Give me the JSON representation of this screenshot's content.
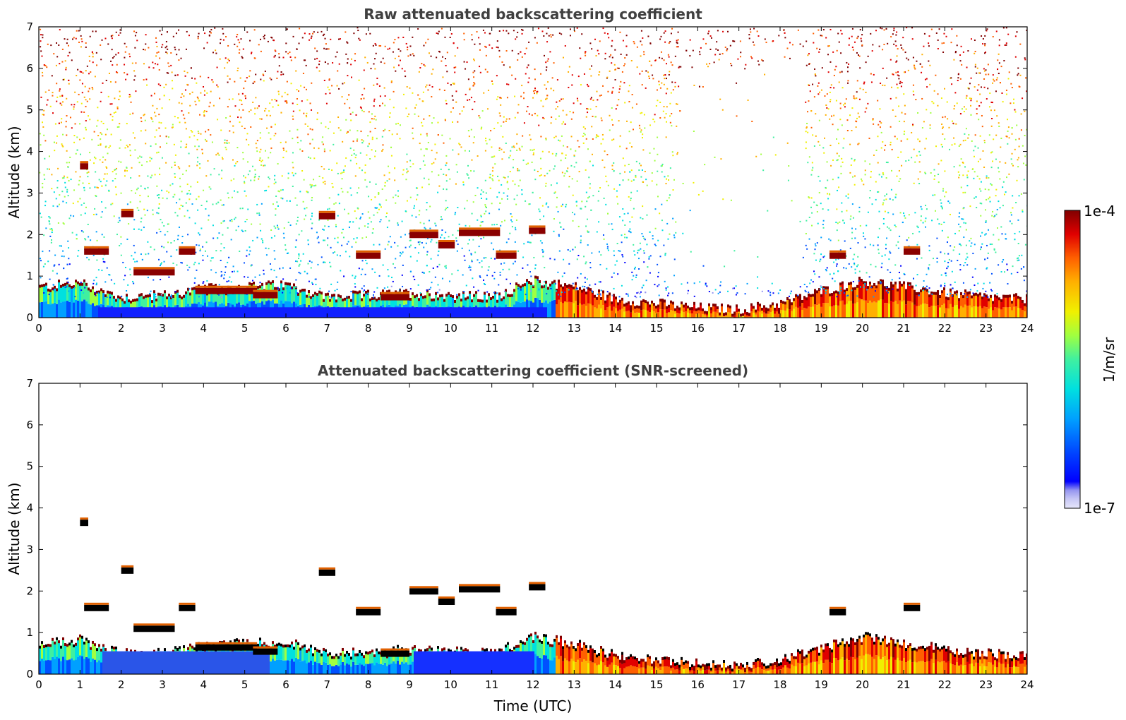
{
  "chart_data": [
    {
      "type": "heatmap",
      "title": "Raw attenuated backscattering coefficient",
      "xlabel": "",
      "ylabel": "Altitude (km)",
      "xlim": [
        0,
        24
      ],
      "ylim": [
        0,
        7
      ],
      "x_ticks": [
        "0",
        "1",
        "2",
        "3",
        "4",
        "5",
        "6",
        "7",
        "8",
        "9",
        "10",
        "11",
        "12",
        "13",
        "14",
        "15",
        "16",
        "17",
        "18",
        "19",
        "20",
        "21",
        "22",
        "23",
        "24"
      ],
      "y_ticks": [
        "0",
        "1",
        "2",
        "3",
        "4",
        "5",
        "6",
        "7"
      ],
      "grid": false,
      "boundary_layer_top_km": {
        "x": [
          0,
          1,
          1.5,
          2,
          3,
          4,
          5,
          6,
          7,
          8,
          9,
          10,
          11,
          12,
          13,
          14,
          15,
          16,
          17,
          18,
          19,
          20,
          21,
          22,
          23,
          24
        ],
        "y": [
          0.7,
          0.8,
          0.6,
          0.45,
          0.5,
          0.65,
          0.7,
          0.75,
          0.45,
          0.5,
          0.55,
          0.5,
          0.45,
          0.85,
          0.7,
          0.4,
          0.3,
          0.2,
          0.15,
          0.3,
          0.6,
          0.85,
          0.7,
          0.55,
          0.45,
          0.4
        ]
      },
      "cloud_layers": [
        {
          "x_start": 1.1,
          "x_end": 1.7,
          "altitude_km": 1.6
        },
        {
          "x_start": 2.3,
          "x_end": 3.3,
          "altitude_km": 1.1
        },
        {
          "x_start": 3.4,
          "x_end": 3.8,
          "altitude_km": 1.6
        },
        {
          "x_start": 3.8,
          "x_end": 5.3,
          "altitude_km": 0.65
        },
        {
          "x_start": 5.2,
          "x_end": 5.8,
          "altitude_km": 0.55
        },
        {
          "x_start": 7.7,
          "x_end": 8.3,
          "altitude_km": 1.5
        },
        {
          "x_start": 8.3,
          "x_end": 9.0,
          "altitude_km": 0.5
        },
        {
          "x_start": 9.0,
          "x_end": 9.7,
          "altitude_km": 2.0
        },
        {
          "x_start": 9.7,
          "x_end": 10.1,
          "altitude_km": 1.75
        },
        {
          "x_start": 10.2,
          "x_end": 11.2,
          "altitude_km": 2.05
        },
        {
          "x_start": 11.1,
          "x_end": 11.6,
          "altitude_km": 1.5
        },
        {
          "x_start": 11.9,
          "x_end": 12.3,
          "altitude_km": 2.1
        },
        {
          "x_start": 2.0,
          "x_end": 2.3,
          "altitude_km": 2.5
        },
        {
          "x_start": 1.0,
          "x_end": 1.2,
          "altitude_km": 3.65
        },
        {
          "x_start": 6.8,
          "x_end": 7.2,
          "altitude_km": 2.45
        },
        {
          "x_start": 19.2,
          "x_end": 19.6,
          "altitude_km": 1.5
        },
        {
          "x_start": 21.0,
          "x_end": 21.4,
          "altitude_km": 1.6
        }
      ]
    },
    {
      "type": "heatmap",
      "title": "Attenuated backscattering coefficient (SNR-screened)",
      "xlabel": "Time (UTC)",
      "ylabel": "Altitude (km)",
      "xlim": [
        0,
        24
      ],
      "ylim": [
        0,
        7
      ],
      "x_ticks": [
        "0",
        "1",
        "2",
        "3",
        "4",
        "5",
        "6",
        "7",
        "8",
        "9",
        "10",
        "11",
        "12",
        "13",
        "14",
        "15",
        "16",
        "17",
        "18",
        "19",
        "20",
        "21",
        "22",
        "23",
        "24"
      ],
      "y_ticks": [
        "0",
        "1",
        "2",
        "3",
        "4",
        "5",
        "6",
        "7"
      ],
      "grid": false
    }
  ],
  "colorbar": {
    "label": "1/m/sr",
    "min_label": "1e-7",
    "max_label": "1e-4",
    "scale": "log",
    "colors": [
      "#e6e6fa",
      "#c8c8f5",
      "#9696f0",
      "#0000ff",
      "#0050ff",
      "#00a0ff",
      "#00e0e0",
      "#40f0a0",
      "#a0ff40",
      "#f0f000",
      "#ffb000",
      "#ff6000",
      "#e00000",
      "#800000"
    ]
  }
}
